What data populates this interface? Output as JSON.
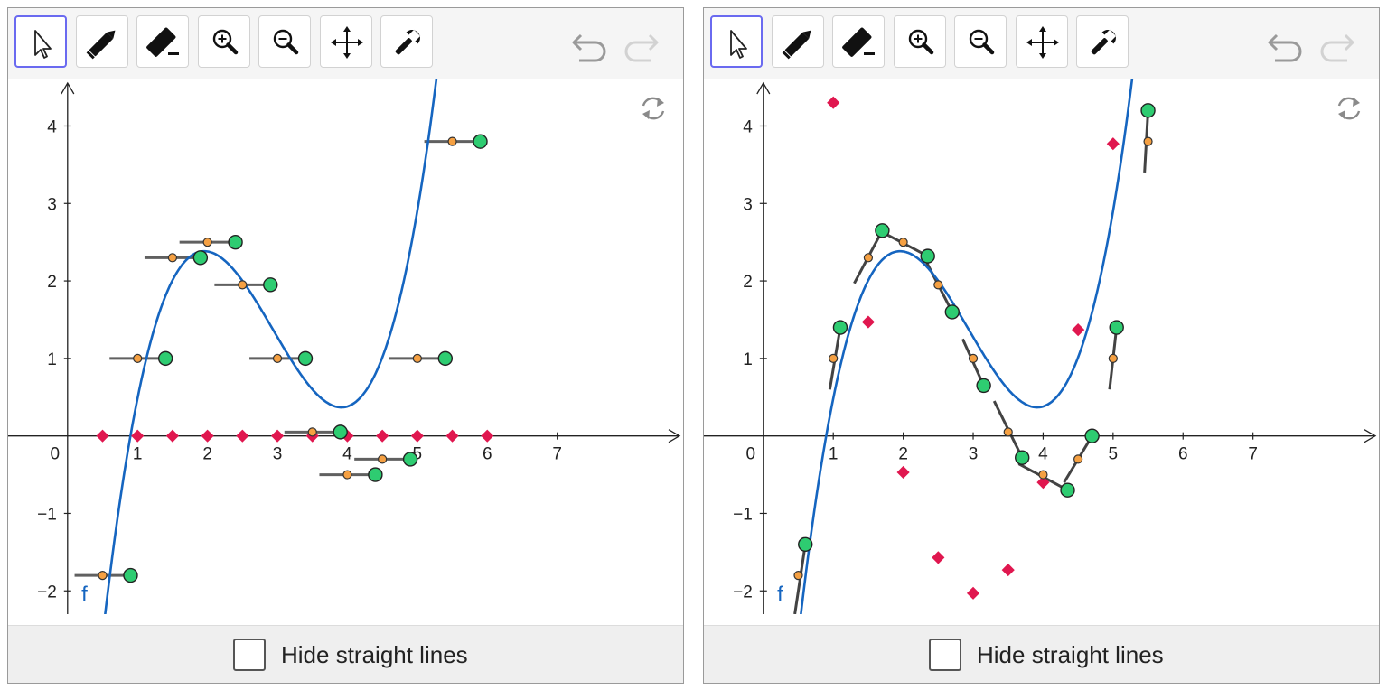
{
  "panels": [
    {
      "toolbar": {
        "tools": [
          {
            "name": "move-tool",
            "icon": "arrow-pointer-icon",
            "active": true
          },
          {
            "name": "pen-tool",
            "icon": "pencil-icon",
            "active": false
          },
          {
            "name": "eraser-tool",
            "icon": "eraser-icon",
            "active": false
          },
          {
            "name": "zoom-in-tool",
            "icon": "zoom-in-icon",
            "active": false
          },
          {
            "name": "zoom-out-tool",
            "icon": "zoom-out-icon",
            "active": false
          },
          {
            "name": "move-graphics-tool",
            "icon": "move-arrows-icon",
            "active": false
          },
          {
            "name": "settings-tool",
            "icon": "wrench-icon",
            "active": false
          }
        ],
        "undo_icon": "undo-icon",
        "redo_icon": "redo-icon"
      },
      "refresh_icon": "refresh-icon",
      "chart_data": {
        "type": "line",
        "function_label": "f",
        "x_ticks": [
          "0",
          "1",
          "2",
          "3",
          "4",
          "5",
          "6",
          "7"
        ],
        "y_ticks": [
          "4",
          "3",
          "2",
          "1",
          "0",
          "−1",
          "−2"
        ],
        "xlim": [
          -0.85,
          8.8
        ],
        "ylim": [
          -2.3,
          4.6
        ],
        "function": {
          "name": "f",
          "color": "#1565c0",
          "form": "cubic",
          "coefficients": {
            "a3": 0.535,
            "a2": -4.71,
            "a1": 12.28,
            "a0": -7.62
          }
        },
        "orange_points": [
          [
            0.5,
            -1.8
          ],
          [
            1.0,
            1.0
          ],
          [
            1.5,
            2.3
          ],
          [
            2.0,
            2.5
          ],
          [
            2.5,
            1.95
          ],
          [
            3.0,
            1.0
          ],
          [
            3.5,
            0.05
          ],
          [
            4.0,
            -0.5
          ],
          [
            4.5,
            -0.3
          ],
          [
            5.0,
            1.0
          ],
          [
            5.5,
            3.8
          ]
        ],
        "green_points": [
          [
            0.9,
            -1.8
          ],
          [
            1.4,
            1.0
          ],
          [
            1.9,
            2.3
          ],
          [
            2.4,
            2.5
          ],
          [
            2.9,
            1.95
          ],
          [
            3.4,
            1.0
          ],
          [
            3.9,
            0.05
          ],
          [
            4.4,
            -0.5
          ],
          [
            4.9,
            -0.3
          ],
          [
            5.4,
            1.0
          ],
          [
            5.9,
            3.8
          ]
        ],
        "red_points": [
          [
            0.5,
            0
          ],
          [
            1.0,
            0
          ],
          [
            1.5,
            0
          ],
          [
            2.0,
            0
          ],
          [
            2.5,
            0
          ],
          [
            3.0,
            0
          ],
          [
            3.5,
            0
          ],
          [
            4.0,
            0
          ],
          [
            4.5,
            0
          ],
          [
            5.0,
            0
          ],
          [
            5.5,
            0
          ],
          [
            6.0,
            0
          ]
        ],
        "segments": [
          [
            [
              0.1,
              -1.8
            ],
            [
              0.9,
              -1.8
            ]
          ],
          [
            [
              0.6,
              1.0
            ],
            [
              1.4,
              1.0
            ]
          ],
          [
            [
              1.1,
              2.3
            ],
            [
              1.9,
              2.3
            ]
          ],
          [
            [
              1.6,
              2.5
            ],
            [
              2.4,
              2.5
            ]
          ],
          [
            [
              2.1,
              1.95
            ],
            [
              2.9,
              1.95
            ]
          ],
          [
            [
              2.6,
              1.0
            ],
            [
              3.4,
              1.0
            ]
          ],
          [
            [
              3.1,
              0.05
            ],
            [
              3.9,
              0.05
            ]
          ],
          [
            [
              3.6,
              -0.5
            ],
            [
              4.4,
              -0.5
            ]
          ],
          [
            [
              4.1,
              -0.3
            ],
            [
              4.9,
              -0.3
            ]
          ],
          [
            [
              4.6,
              1.0
            ],
            [
              5.4,
              1.0
            ]
          ],
          [
            [
              5.1,
              3.8
            ],
            [
              5.9,
              3.8
            ]
          ]
        ],
        "colors": {
          "orange": "#f5a042",
          "green": "#2ecc71",
          "red": "#e0174f",
          "segment": "#444444"
        }
      },
      "checkbox": {
        "label": "Hide straight lines",
        "checked": false
      }
    },
    {
      "toolbar": {
        "tools": [
          {
            "name": "move-tool",
            "icon": "arrow-pointer-icon",
            "active": true
          },
          {
            "name": "pen-tool",
            "icon": "pencil-icon",
            "active": false
          },
          {
            "name": "eraser-tool",
            "icon": "eraser-icon",
            "active": false
          },
          {
            "name": "zoom-in-tool",
            "icon": "zoom-in-icon",
            "active": false
          },
          {
            "name": "zoom-out-tool",
            "icon": "zoom-out-icon",
            "active": false
          },
          {
            "name": "move-graphics-tool",
            "icon": "move-arrows-icon",
            "active": false
          },
          {
            "name": "settings-tool",
            "icon": "wrench-icon",
            "active": false
          }
        ],
        "undo_icon": "undo-icon",
        "redo_icon": "redo-icon"
      },
      "refresh_icon": "refresh-icon",
      "chart_data": {
        "type": "line",
        "function_label": "f",
        "x_ticks": [
          "0",
          "1",
          "2",
          "3",
          "4",
          "5",
          "6",
          "7"
        ],
        "y_ticks": [
          "4",
          "3",
          "2",
          "1",
          "0",
          "−1",
          "−2"
        ],
        "xlim": [
          -0.85,
          8.8
        ],
        "ylim": [
          -2.3,
          4.6
        ],
        "function": {
          "name": "f",
          "color": "#1565c0",
          "form": "cubic",
          "coefficients": {
            "a3": 0.535,
            "a2": -4.71,
            "a1": 12.28,
            "a0": -7.62
          }
        },
        "orange_points": [
          [
            0.5,
            -1.8
          ],
          [
            1.0,
            1.0
          ],
          [
            1.5,
            2.3
          ],
          [
            2.0,
            2.5
          ],
          [
            2.5,
            1.95
          ],
          [
            3.0,
            1.0
          ],
          [
            3.5,
            0.05
          ],
          [
            4.0,
            -0.5
          ],
          [
            4.5,
            -0.3
          ],
          [
            5.0,
            1.0
          ],
          [
            5.5,
            3.8
          ]
        ],
        "green_points": [
          [
            0.6,
            -1.4
          ],
          [
            1.1,
            1.4
          ],
          [
            1.7,
            2.65
          ],
          [
            2.35,
            2.32
          ],
          [
            2.7,
            1.6
          ],
          [
            3.15,
            0.65
          ],
          [
            3.7,
            -0.28
          ],
          [
            4.35,
            -0.7
          ],
          [
            4.7,
            0.0
          ],
          [
            5.05,
            1.4
          ],
          [
            5.5,
            4.2
          ]
        ],
        "red_points": [
          [
            1.0,
            4.3
          ],
          [
            1.5,
            1.47
          ],
          [
            2.0,
            -0.47
          ],
          [
            2.5,
            -1.57
          ],
          [
            3.0,
            -2.03
          ],
          [
            3.5,
            -1.73
          ],
          [
            4.0,
            -0.6
          ],
          [
            4.5,
            1.37
          ],
          [
            5.0,
            3.77
          ]
        ],
        "segments": [
          [
            [
              0.45,
              -2.3
            ],
            [
              0.6,
              -1.4
            ]
          ],
          [
            [
              0.95,
              0.6
            ],
            [
              1.1,
              1.4
            ]
          ],
          [
            [
              1.3,
              1.97
            ],
            [
              1.7,
              2.65
            ]
          ],
          [
            [
              1.7,
              2.63
            ],
            [
              2.35,
              2.32
            ]
          ],
          [
            [
              2.3,
              2.3
            ],
            [
              2.7,
              1.6
            ]
          ],
          [
            [
              2.85,
              1.25
            ],
            [
              3.15,
              0.65
            ]
          ],
          [
            [
              3.3,
              0.45
            ],
            [
              3.7,
              -0.28
            ]
          ],
          [
            [
              3.65,
              -0.36
            ],
            [
              4.35,
              -0.7
            ]
          ],
          [
            [
              4.3,
              -0.6
            ],
            [
              4.7,
              0.0
            ]
          ],
          [
            [
              4.95,
              0.6
            ],
            [
              5.05,
              1.4
            ]
          ],
          [
            [
              5.45,
              3.4
            ],
            [
              5.5,
              4.2
            ]
          ]
        ],
        "colors": {
          "orange": "#f5a042",
          "green": "#2ecc71",
          "red": "#e0174f",
          "segment": "#222222"
        }
      },
      "checkbox": {
        "label": "Hide straight lines",
        "checked": false
      }
    }
  ]
}
